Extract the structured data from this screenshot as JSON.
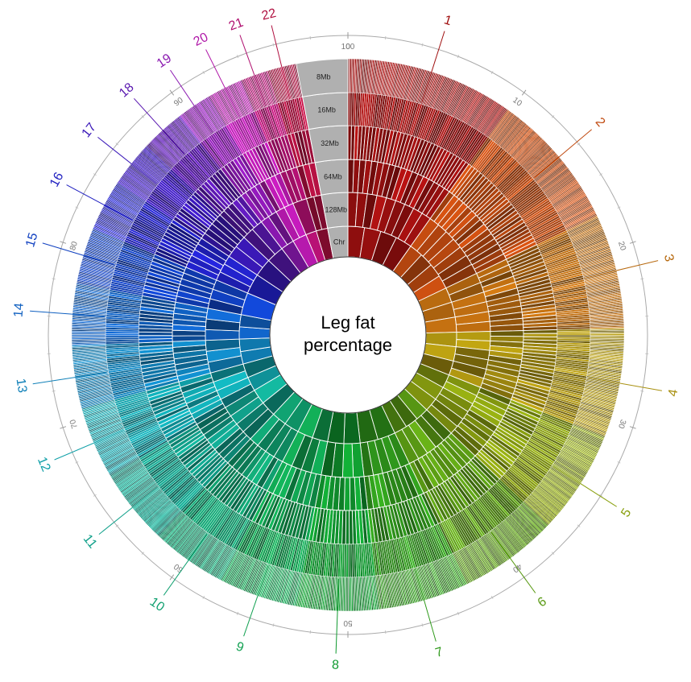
{
  "chart_data": {
    "type": "sunburst",
    "title_lines": [
      "Leg fat",
      "percentage"
    ],
    "ring_labels": [
      "8Mb",
      "16Mb",
      "32Mb",
      "64Mb",
      "128Mb",
      "Chr"
    ],
    "scale_ticks": [
      "0",
      "10",
      "20",
      "30",
      "40",
      "50",
      "60",
      "70",
      "80",
      "90",
      "100"
    ],
    "chromosomes": [
      {
        "label": "1",
        "color": "#a01010",
        "start": 0.0,
        "end": 9.8
      },
      {
        "label": "2",
        "color": "#c04a10",
        "start": 9.8,
        "end": 17.9
      },
      {
        "label": "3",
        "color": "#b86a10",
        "start": 17.9,
        "end": 24.6
      },
      {
        "label": "4",
        "color": "#a89010",
        "start": 24.6,
        "end": 31.0
      },
      {
        "label": "5",
        "color": "#8aa010",
        "start": 31.0,
        "end": 37.1
      },
      {
        "label": "6",
        "color": "#5a9a14",
        "start": 37.1,
        "end": 42.9
      },
      {
        "label": "7",
        "color": "#309a1c",
        "start": 42.9,
        "end": 48.2
      },
      {
        "label": "8",
        "color": "#109a30",
        "start": 48.2,
        "end": 53.0
      },
      {
        "label": "9",
        "color": "#10a050",
        "start": 53.0,
        "end": 57.6
      },
      {
        "label": "10",
        "color": "#10a070",
        "start": 57.6,
        "end": 62.0
      },
      {
        "label": "11",
        "color": "#10a08a",
        "start": 62.0,
        "end": 66.5
      },
      {
        "label": "12",
        "color": "#10a0a8",
        "start": 66.5,
        "end": 70.7
      },
      {
        "label": "13",
        "color": "#1080b8",
        "start": 70.7,
        "end": 74.4
      },
      {
        "label": "14",
        "color": "#1060c0",
        "start": 74.4,
        "end": 78.0
      },
      {
        "label": "15",
        "color": "#1040c0",
        "start": 78.0,
        "end": 81.3
      },
      {
        "label": "16",
        "color": "#2020c0",
        "start": 81.3,
        "end": 84.3
      },
      {
        "label": "17",
        "color": "#3a18b8",
        "start": 84.3,
        "end": 87.0
      },
      {
        "label": "18",
        "color": "#5a18b0",
        "start": 87.0,
        "end": 89.6
      },
      {
        "label": "19",
        "color": "#8a18b0",
        "start": 89.6,
        "end": 91.6
      },
      {
        "label": "20",
        "color": "#b018a8",
        "start": 91.6,
        "end": 93.7
      },
      {
        "label": "21",
        "color": "#b01070",
        "start": 93.7,
        "end": 95.3
      },
      {
        "label": "22",
        "color": "#b01040",
        "start": 95.3,
        "end": 97.0
      }
    ],
    "key_color": "#b0b0b0"
  }
}
